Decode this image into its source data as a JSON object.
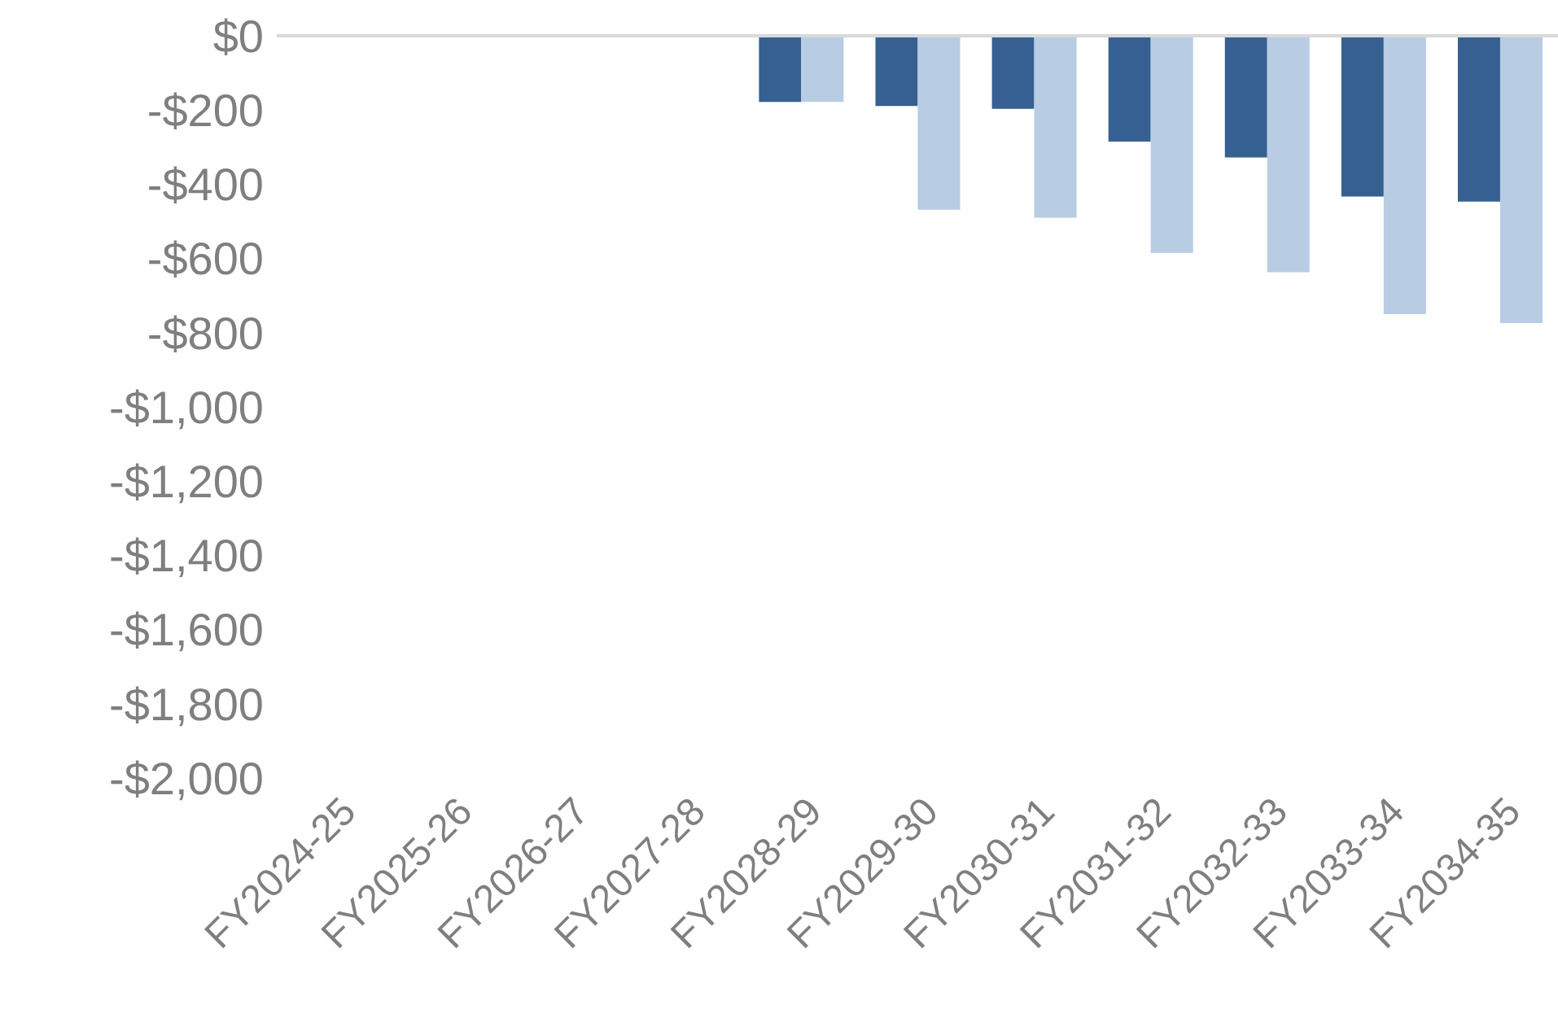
{
  "chart_data": {
    "type": "bar",
    "categories": [
      "FY2024-25",
      "FY2025-26",
      "FY2026-27",
      "FY2027-28",
      "FY2028-29",
      "FY2029-30",
      "FY2030-31",
      "FY2031-32",
      "FY2032-33",
      "FY2033-34",
      "FY2034-35"
    ],
    "series": [
      {
        "color": "#366092",
        "values": [
          0,
          0,
          0,
          0,
          -178,
          -189,
          -197,
          -285,
          -328,
          -433,
          -447
        ]
      },
      {
        "color": "#b8cce4",
        "values": [
          0,
          0,
          0,
          0,
          -178,
          -469,
          -490,
          -585,
          -637,
          -750,
          -774
        ]
      }
    ],
    "ylim": [
      -2000,
      0
    ],
    "yticks": [
      {
        "value": 0,
        "label": "$0"
      },
      {
        "value": -200,
        "label": "-$200"
      },
      {
        "value": -400,
        "label": "-$400"
      },
      {
        "value": -600,
        "label": "-$600"
      },
      {
        "value": -800,
        "label": "-$800"
      },
      {
        "value": -1000,
        "label": "-$1,000"
      },
      {
        "value": -1200,
        "label": "-$1,200"
      },
      {
        "value": -1400,
        "label": "-$1,400"
      },
      {
        "value": -1600,
        "label": "-$1,600"
      },
      {
        "value": -1800,
        "label": "-$1,800"
      },
      {
        "value": -2000,
        "label": "-$2,000"
      }
    ],
    "grid": false,
    "legend": false
  }
}
